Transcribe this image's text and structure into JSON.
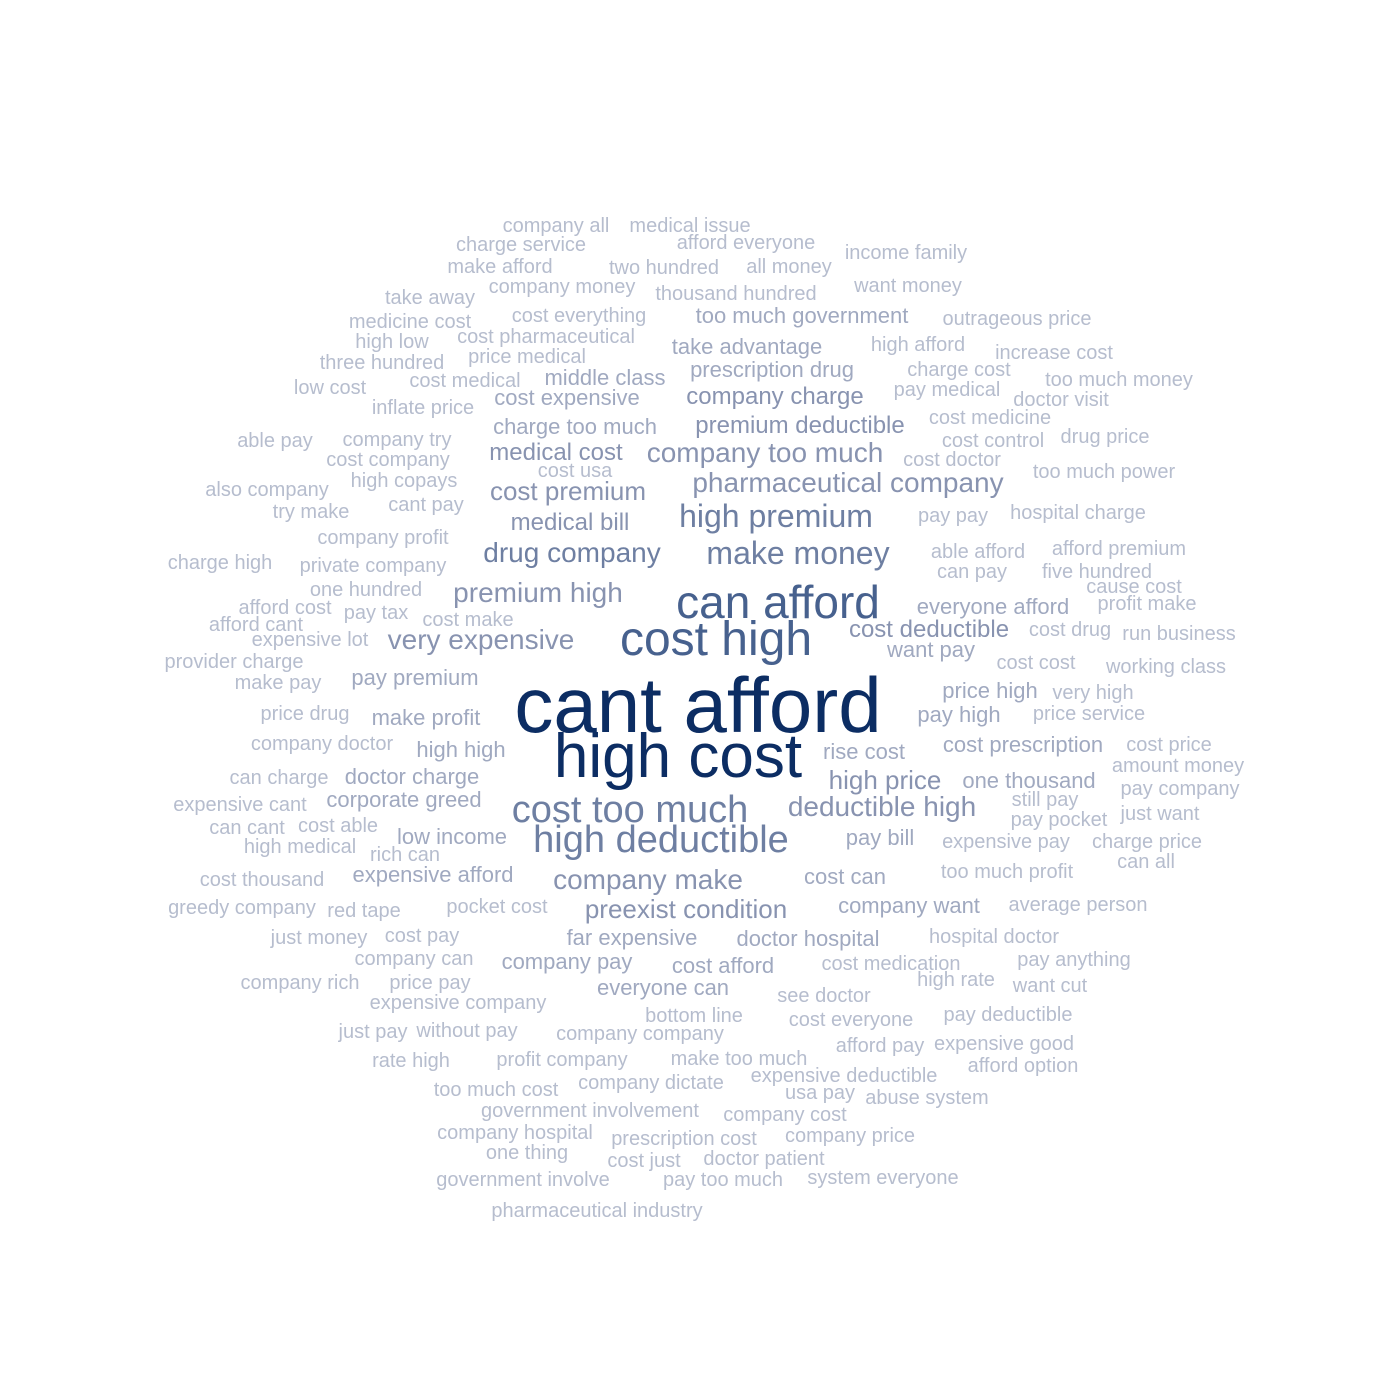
{
  "palette": {
    "w1": "#0c2d63",
    "w2": "#1f3e72",
    "w3": "#47618e",
    "w4": "#6e7fa2",
    "w5": "#8893b0",
    "w6": "#a0a9c0",
    "w7": "#b6bdce"
  },
  "words": [
    {
      "text": "cant afford",
      "weight": 1
    },
    {
      "text": "high cost",
      "weight": 1
    },
    {
      "text": "cost high",
      "weight": 3
    },
    {
      "text": "can afford",
      "weight": 3
    },
    {
      "text": "cost too much",
      "weight": 4
    },
    {
      "text": "high deductible",
      "weight": 4
    },
    {
      "text": "make money",
      "weight": 4
    },
    {
      "text": "drug company",
      "weight": 4
    },
    {
      "text": "high premium",
      "weight": 4
    },
    {
      "text": "premium high",
      "weight": 5
    },
    {
      "text": "very expensive",
      "weight": 5
    },
    {
      "text": "pharmaceutical company",
      "weight": 5
    },
    {
      "text": "company too much",
      "weight": 5
    },
    {
      "text": "cost premium",
      "weight": 5
    },
    {
      "text": "deductible high",
      "weight": 5
    },
    {
      "text": "company make",
      "weight": 5
    },
    {
      "text": "preexist condition",
      "weight": 5
    },
    {
      "text": "high price",
      "weight": 5
    },
    {
      "text": "medical cost",
      "weight": 5
    },
    {
      "text": "medical bill",
      "weight": 5
    },
    {
      "text": "company charge",
      "weight": 5
    },
    {
      "text": "premium deductible",
      "weight": 5
    },
    {
      "text": "cost deductible",
      "weight": 5
    },
    {
      "text": "charge too much",
      "weight": 6
    },
    {
      "text": "prescription drug",
      "weight": 6
    },
    {
      "text": "middle class",
      "weight": 6
    },
    {
      "text": "cost expensive",
      "weight": 6
    },
    {
      "text": "take advantage",
      "weight": 6
    },
    {
      "text": "too much government",
      "weight": 6
    },
    {
      "text": "pay premium",
      "weight": 6
    },
    {
      "text": "make profit",
      "weight": 6
    },
    {
      "text": "high high",
      "weight": 6
    },
    {
      "text": "want pay",
      "weight": 6
    },
    {
      "text": "everyone afford",
      "weight": 6
    },
    {
      "text": "price high",
      "weight": 6
    },
    {
      "text": "pay high",
      "weight": 6
    },
    {
      "text": "cost prescription",
      "weight": 6
    },
    {
      "text": "rise cost",
      "weight": 6
    },
    {
      "text": "low income",
      "weight": 6
    },
    {
      "text": "pay bill",
      "weight": 6
    },
    {
      "text": "cost can",
      "weight": 6
    },
    {
      "text": "company want",
      "weight": 6
    },
    {
      "text": "far expensive",
      "weight": 6
    },
    {
      "text": "doctor hospital",
      "weight": 6
    },
    {
      "text": "company pay",
      "weight": 6
    },
    {
      "text": "cost afford",
      "weight": 6
    },
    {
      "text": "everyone can",
      "weight": 6
    },
    {
      "text": "corporate greed",
      "weight": 6
    },
    {
      "text": "doctor charge",
      "weight": 6
    },
    {
      "text": "one thousand",
      "weight": 6
    },
    {
      "text": "expensive afford",
      "weight": 6
    },
    {
      "text": "company all",
      "weight": 7
    },
    {
      "text": "medical issue",
      "weight": 7
    },
    {
      "text": "charge service",
      "weight": 7
    },
    {
      "text": "afford everyone",
      "weight": 7
    },
    {
      "text": "income family",
      "weight": 7
    },
    {
      "text": "make afford",
      "weight": 7
    },
    {
      "text": "two hundred",
      "weight": 7
    },
    {
      "text": "all money",
      "weight": 7
    },
    {
      "text": "company money",
      "weight": 7
    },
    {
      "text": "want money",
      "weight": 7
    },
    {
      "text": "take away",
      "weight": 7
    },
    {
      "text": "thousand hundred",
      "weight": 7
    },
    {
      "text": "cost everything",
      "weight": 7
    },
    {
      "text": "outrageous price",
      "weight": 7
    },
    {
      "text": "medicine cost",
      "weight": 7
    },
    {
      "text": "high low",
      "weight": 7
    },
    {
      "text": "cost pharmaceutical",
      "weight": 7
    },
    {
      "text": "high afford",
      "weight": 7
    },
    {
      "text": "increase cost",
      "weight": 7
    },
    {
      "text": "three hundred",
      "weight": 7
    },
    {
      "text": "price medical",
      "weight": 7
    },
    {
      "text": "charge cost",
      "weight": 7
    },
    {
      "text": "too much money",
      "weight": 7
    },
    {
      "text": "low cost",
      "weight": 7
    },
    {
      "text": "cost medical",
      "weight": 7
    },
    {
      "text": "pay medical",
      "weight": 7
    },
    {
      "text": "doctor visit",
      "weight": 7
    },
    {
      "text": "inflate price",
      "weight": 7
    },
    {
      "text": "cost medicine",
      "weight": 7
    },
    {
      "text": "able pay",
      "weight": 7
    },
    {
      "text": "company try",
      "weight": 7
    },
    {
      "text": "cost control",
      "weight": 7
    },
    {
      "text": "drug price",
      "weight": 7
    },
    {
      "text": "cost company",
      "weight": 7
    },
    {
      "text": "cost usa",
      "weight": 7
    },
    {
      "text": "cost doctor",
      "weight": 7
    },
    {
      "text": "too much power",
      "weight": 7
    },
    {
      "text": "also company",
      "weight": 7
    },
    {
      "text": "high copays",
      "weight": 7
    },
    {
      "text": "cant pay",
      "weight": 7
    },
    {
      "text": "try make",
      "weight": 7
    },
    {
      "text": "pay pay",
      "weight": 7
    },
    {
      "text": "hospital charge",
      "weight": 7
    },
    {
      "text": "company profit",
      "weight": 7
    },
    {
      "text": "charge high",
      "weight": 7
    },
    {
      "text": "private company",
      "weight": 7
    },
    {
      "text": "able afford",
      "weight": 7
    },
    {
      "text": "afford premium",
      "weight": 7
    },
    {
      "text": "can pay",
      "weight": 7
    },
    {
      "text": "five hundred",
      "weight": 7
    },
    {
      "text": "one hundred",
      "weight": 7
    },
    {
      "text": "cause cost",
      "weight": 7
    },
    {
      "text": "afford cost",
      "weight": 7
    },
    {
      "text": "pay tax",
      "weight": 7
    },
    {
      "text": "profit make",
      "weight": 7
    },
    {
      "text": "afford cant",
      "weight": 7
    },
    {
      "text": "cost make",
      "weight": 7
    },
    {
      "text": "cost drug",
      "weight": 7
    },
    {
      "text": "run business",
      "weight": 7
    },
    {
      "text": "expensive lot",
      "weight": 7
    },
    {
      "text": "provider charge",
      "weight": 7
    },
    {
      "text": "cost cost",
      "weight": 7
    },
    {
      "text": "working class",
      "weight": 7
    },
    {
      "text": "make pay",
      "weight": 7
    },
    {
      "text": "very high",
      "weight": 7
    },
    {
      "text": "price drug",
      "weight": 7
    },
    {
      "text": "price service",
      "weight": 7
    },
    {
      "text": "company doctor",
      "weight": 7
    },
    {
      "text": "cost price",
      "weight": 7
    },
    {
      "text": "amount money",
      "weight": 7
    },
    {
      "text": "can charge",
      "weight": 7
    },
    {
      "text": "pay company",
      "weight": 7
    },
    {
      "text": "expensive cant",
      "weight": 7
    },
    {
      "text": "still pay",
      "weight": 7
    },
    {
      "text": "just want",
      "weight": 7
    },
    {
      "text": "can cant",
      "weight": 7
    },
    {
      "text": "cost able",
      "weight": 7
    },
    {
      "text": "pay pocket",
      "weight": 7
    },
    {
      "text": "expensive pay",
      "weight": 7
    },
    {
      "text": "charge price",
      "weight": 7
    },
    {
      "text": "high medical",
      "weight": 7
    },
    {
      "text": "rich can",
      "weight": 7
    },
    {
      "text": "can all",
      "weight": 7
    },
    {
      "text": "too much profit",
      "weight": 7
    },
    {
      "text": "cost thousand",
      "weight": 7
    },
    {
      "text": "greedy company",
      "weight": 7
    },
    {
      "text": "red tape",
      "weight": 7
    },
    {
      "text": "pocket cost",
      "weight": 7
    },
    {
      "text": "average person",
      "weight": 7
    },
    {
      "text": "just money",
      "weight": 7
    },
    {
      "text": "cost pay",
      "weight": 7
    },
    {
      "text": "hospital doctor",
      "weight": 7
    },
    {
      "text": "company can",
      "weight": 7
    },
    {
      "text": "cost medication",
      "weight": 7
    },
    {
      "text": "pay anything",
      "weight": 7
    },
    {
      "text": "company rich",
      "weight": 7
    },
    {
      "text": "price pay",
      "weight": 7
    },
    {
      "text": "high rate",
      "weight": 7
    },
    {
      "text": "want cut",
      "weight": 7
    },
    {
      "text": "expensive company",
      "weight": 7
    },
    {
      "text": "see doctor",
      "weight": 7
    },
    {
      "text": "bottom line",
      "weight": 7
    },
    {
      "text": "cost everyone",
      "weight": 7
    },
    {
      "text": "pay deductible",
      "weight": 7
    },
    {
      "text": "just pay",
      "weight": 7
    },
    {
      "text": "without pay",
      "weight": 7
    },
    {
      "text": "company company",
      "weight": 7
    },
    {
      "text": "afford pay",
      "weight": 7
    },
    {
      "text": "expensive good",
      "weight": 7
    },
    {
      "text": "rate high",
      "weight": 7
    },
    {
      "text": "profit company",
      "weight": 7
    },
    {
      "text": "make too much",
      "weight": 7
    },
    {
      "text": "afford option",
      "weight": 7
    },
    {
      "text": "expensive deductible",
      "weight": 7
    },
    {
      "text": "too much cost",
      "weight": 7
    },
    {
      "text": "company dictate",
      "weight": 7
    },
    {
      "text": "usa pay",
      "weight": 7
    },
    {
      "text": "abuse system",
      "weight": 7
    },
    {
      "text": "government involvement",
      "weight": 7
    },
    {
      "text": "company cost",
      "weight": 7
    },
    {
      "text": "company hospital",
      "weight": 7
    },
    {
      "text": "prescription cost",
      "weight": 7
    },
    {
      "text": "company price",
      "weight": 7
    },
    {
      "text": "one thing",
      "weight": 7
    },
    {
      "text": "cost just",
      "weight": 7
    },
    {
      "text": "doctor patient",
      "weight": 7
    },
    {
      "text": "government involve",
      "weight": 7
    },
    {
      "text": "pay too much",
      "weight": 7
    },
    {
      "text": "system everyone",
      "weight": 7
    },
    {
      "text": "pharmaceutical industry",
      "weight": 7
    }
  ]
}
